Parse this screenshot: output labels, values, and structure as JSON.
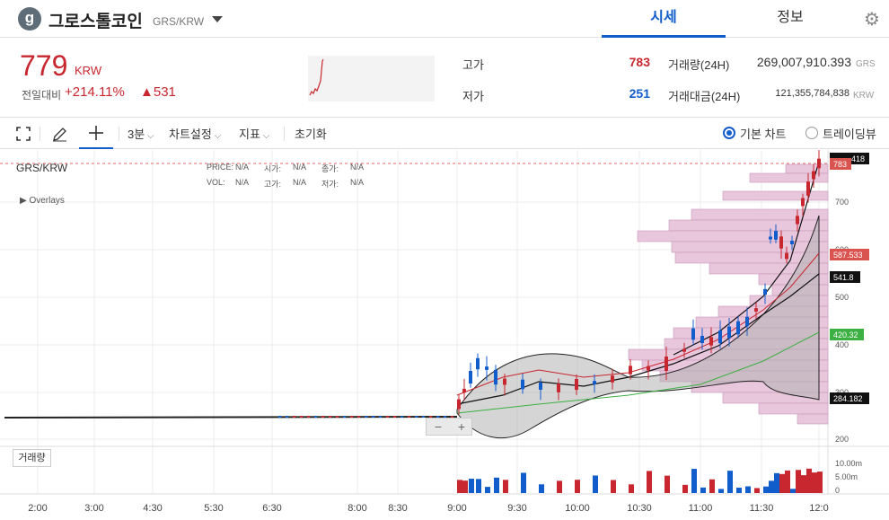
{
  "header": {
    "logo_letter": "g",
    "coin_name": "그로스톨코인",
    "pair": "GRS/KRW",
    "tabs": [
      "시세",
      "정보"
    ]
  },
  "price": {
    "current": "779",
    "unit": "KRW",
    "change_label": "전일대비",
    "change_pct": "+214.11%",
    "change_val": "▲531"
  },
  "summary": {
    "high_label": "고가",
    "high": "783",
    "low_label": "저가",
    "low": "251",
    "vol_label": "거래량(24H)",
    "vol": "269,007,910.393",
    "vol_unit": "GRS",
    "amt_label": "거래대금(24H)",
    "amt": "121,355,784,838",
    "amt_unit": "KRW"
  },
  "toolbar": {
    "interval": "3분",
    "settings": "차트설정",
    "indicators": "지표",
    "reset": "초기화",
    "basic_chart": "기본 차트",
    "tradingview": "트레이딩뷰"
  },
  "chart_info": {
    "title": "GRS/KRW",
    "overlays": "Overlays",
    "price_label": "PRICE:",
    "price_val": "N/A",
    "open_label": "시가:",
    "open_val": "N/A",
    "close_label": "종가:",
    "close_val": "N/A",
    "vol_label": "VOL:",
    "vol_val": "N/A",
    "high_label": "고가:",
    "high_val": "N/A",
    "low_label": "저가:",
    "low_val": "N/A",
    "volume_pane": "거래량"
  },
  "chart_data": {
    "type": "candlestick",
    "x_ticks": [
      "2:00",
      "3:00",
      "4:30",
      "5:30",
      "6:30",
      "8:00",
      "8:30",
      "9:00",
      "9:30",
      "10:00",
      "10:30",
      "11:00",
      "11:30",
      "12:0"
    ],
    "y_ticks": [
      "200",
      "300",
      "400",
      "500",
      "600",
      "700"
    ],
    "vol_ticks": [
      "10.00m",
      "5.00m",
      "0"
    ],
    "price_tags": [
      {
        "value": "783",
        "color": "#d9534f"
      },
      {
        "value": "418",
        "color": "#111111"
      },
      {
        "value": "587.533",
        "color": "#d9534f"
      },
      {
        "value": "541.8",
        "color": "#111111"
      },
      {
        "value": "420.32",
        "color": "#3cb043"
      },
      {
        "value": "284.182",
        "color": "#111111"
      }
    ]
  },
  "colors": {
    "up": "#c8272f",
    "down": "#115dcb",
    "accent": "#115dcb"
  }
}
